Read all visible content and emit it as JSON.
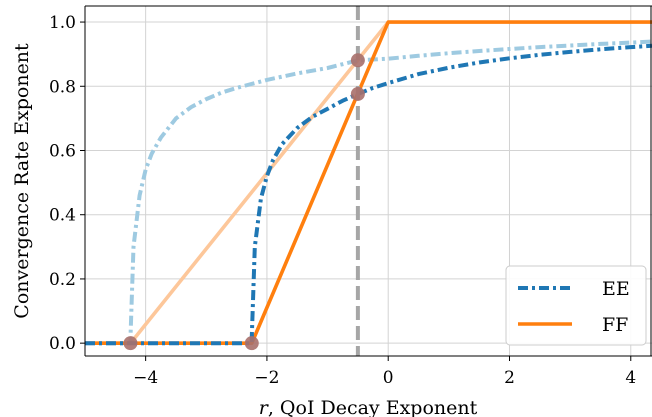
{
  "chart_data": {
    "type": "line",
    "xlabel_italic": "r",
    "xlabel_rest": ", QoI Decay Exponent",
    "ylabel": "Convergence Rate Exponent",
    "xlim": [
      -5.0,
      4.35
    ],
    "ylim": [
      -0.04,
      1.05
    ],
    "xticks": [
      -4,
      -2,
      0,
      2,
      4
    ],
    "xtick_labels": [
      "−4",
      "−2",
      "0",
      "2",
      "4"
    ],
    "yticks": [
      0.0,
      0.2,
      0.4,
      0.6,
      0.8,
      1.0
    ],
    "ytick_labels": [
      "0.0",
      "0.2",
      "0.4",
      "0.6",
      "0.8",
      "1.0"
    ],
    "grid": true,
    "legend_placement": "lower-right",
    "vline_x": -0.5,
    "series": [
      {
        "name": "EE",
        "style": "dashdot",
        "color": "#1f77b4",
        "x": [
          -5.0,
          -2.25,
          -2.25,
          -2.2,
          -2.1,
          -2.0,
          -1.9,
          -1.75,
          -1.5,
          -1.25,
          -1.0,
          -0.75,
          -0.5,
          -0.25,
          0.0,
          0.5,
          1.0,
          1.5,
          2.0,
          2.5,
          3.0,
          3.5,
          4.0,
          4.35
        ],
        "y": [
          0.0,
          0.0,
          0.02,
          0.3,
          0.45,
          0.52,
          0.57,
          0.62,
          0.67,
          0.705,
          0.73,
          0.755,
          0.776,
          0.795,
          0.81,
          0.838,
          0.858,
          0.874,
          0.887,
          0.898,
          0.907,
          0.915,
          0.922,
          0.926
        ]
      },
      {
        "name": "FF",
        "style": "solid",
        "color": "#ff7f0e",
        "x": [
          -5.0,
          -2.25,
          0.0,
          4.35
        ],
        "y": [
          0.0,
          0.0,
          1.0,
          1.0
        ]
      },
      {
        "style": "dashdot",
        "color": "#9ecae1",
        "x": [
          -5.0,
          -4.25,
          -4.25,
          -4.2,
          -4.1,
          -4.0,
          -3.9,
          -3.75,
          -3.5,
          -3.25,
          -3.0,
          -2.75,
          -2.5,
          -2.0,
          -1.5,
          -1.0,
          -0.5,
          0.0,
          0.5,
          1.0,
          1.5,
          2.0,
          2.5,
          3.0,
          3.5,
          4.0,
          4.35
        ],
        "y": [
          0.0,
          0.0,
          0.02,
          0.3,
          0.46,
          0.54,
          0.59,
          0.64,
          0.7,
          0.735,
          0.76,
          0.78,
          0.795,
          0.82,
          0.84,
          0.857,
          0.881,
          0.886,
          0.895,
          0.903,
          0.91,
          0.916,
          0.922,
          0.927,
          0.932,
          0.936,
          0.939
        ]
      },
      {
        "style": "solid",
        "color": "#fdc79a",
        "x": [
          -5.0,
          -4.25,
          0.0
        ],
        "y": [
          0.0,
          0.0,
          1.0
        ]
      }
    ],
    "markers": [
      {
        "x": -4.25,
        "y": 0.0
      },
      {
        "x": -2.25,
        "y": 0.0
      },
      {
        "x": -0.5,
        "y": 0.776
      },
      {
        "x": -0.5,
        "y": 0.881
      }
    ]
  }
}
